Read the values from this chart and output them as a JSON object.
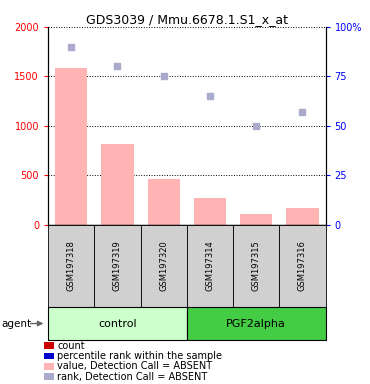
{
  "title": "GDS3039 / Mmu.6678.1.S1_x_at",
  "samples": [
    "GSM197318",
    "GSM197319",
    "GSM197320",
    "GSM197314",
    "GSM197315",
    "GSM197316"
  ],
  "groups": [
    "control",
    "control",
    "control",
    "PGF2alpha",
    "PGF2alpha",
    "PGF2alpha"
  ],
  "bar_values": [
    1580,
    820,
    460,
    270,
    110,
    170
  ],
  "rank_values": [
    90,
    80,
    75,
    65,
    50,
    57
  ],
  "ylim_left": [
    0,
    2000
  ],
  "ylim_right": [
    0,
    100
  ],
  "left_ticks": [
    0,
    500,
    1000,
    1500,
    2000
  ],
  "right_ticks": [
    0,
    25,
    50,
    75,
    100
  ],
  "bar_color": "#ffb3b3",
  "rank_color": "#aaaacc",
  "group_colors": {
    "control": "#ccffcc",
    "PGF2alpha": "#44cc44"
  },
  "group_spans": {
    "control": [
      0,
      3
    ],
    "PGF2alpha": [
      3,
      6
    ]
  },
  "legend_items": [
    {
      "label": "count",
      "color": "#cc0000"
    },
    {
      "label": "percentile rank within the sample",
      "color": "#0000cc"
    },
    {
      "label": "value, Detection Call = ABSENT",
      "color": "#ffb3b3"
    },
    {
      "label": "rank, Detection Call = ABSENT",
      "color": "#aaaacc"
    }
  ],
  "agent_label": "agent",
  "label_box_color": "#d0d0d0",
  "title_fontsize": 9,
  "tick_fontsize": 7,
  "label_fontsize": 6,
  "group_fontsize": 8,
  "legend_fontsize": 7
}
